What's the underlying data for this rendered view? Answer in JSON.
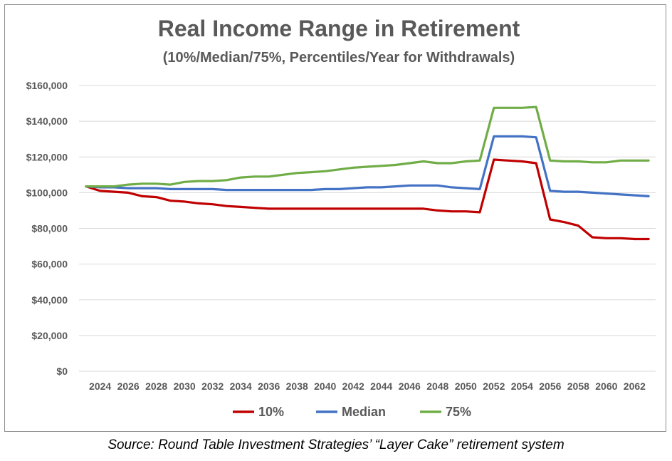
{
  "chart_data": {
    "type": "line",
    "title": "Real Income Range in Retirement",
    "subtitle": "(10%/Median/75%, Percentiles/Year for Withdrawals)",
    "xlabel": "",
    "ylabel": "",
    "x": [
      2023,
      2024,
      2025,
      2026,
      2027,
      2028,
      2029,
      2030,
      2031,
      2032,
      2033,
      2034,
      2035,
      2036,
      2037,
      2038,
      2039,
      2040,
      2041,
      2042,
      2043,
      2044,
      2045,
      2046,
      2047,
      2048,
      2049,
      2050,
      2051,
      2052,
      2053,
      2054,
      2055,
      2056,
      2057,
      2058,
      2059,
      2060,
      2061,
      2062,
      2063
    ],
    "xticks": [
      "2024",
      "2026",
      "2028",
      "2030",
      "2032",
      "2034",
      "2036",
      "2038",
      "2040",
      "2042",
      "2044",
      "2046",
      "2048",
      "2050",
      "2052",
      "2054",
      "2056",
      "2058",
      "2060",
      "2062"
    ],
    "xtick_values": [
      2024,
      2026,
      2028,
      2030,
      2032,
      2034,
      2036,
      2038,
      2040,
      2042,
      2044,
      2046,
      2048,
      2050,
      2052,
      2054,
      2056,
      2058,
      2060,
      2062
    ],
    "ylim": [
      0,
      160000
    ],
    "yticks": [
      0,
      20000,
      40000,
      60000,
      80000,
      100000,
      120000,
      140000,
      160000
    ],
    "ytick_labels": [
      "$0",
      "$20,000",
      "$40,000",
      "$60,000",
      "$80,000",
      "$100,000",
      "$120,000",
      "$140,000",
      "$160,000"
    ],
    "grid": true,
    "legend_position": "bottom",
    "series": [
      {
        "name": "10%",
        "color": "#c00000",
        "values": [
          103500,
          101000,
          100500,
          100000,
          98000,
          97500,
          95500,
          95000,
          94000,
          93500,
          92500,
          92000,
          91500,
          91000,
          91000,
          91000,
          91000,
          91000,
          91000,
          91000,
          91000,
          91000,
          91000,
          91000,
          91000,
          90000,
          89500,
          89500,
          89000,
          118500,
          118000,
          117500,
          116500,
          85000,
          83500,
          81500,
          75000,
          74500,
          74500,
          74000,
          74000
        ]
      },
      {
        "name": "Median",
        "color": "#4472c4",
        "values": [
          103500,
          103000,
          103000,
          102500,
          102500,
          102500,
          102000,
          102000,
          102000,
          102000,
          101500,
          101500,
          101500,
          101500,
          101500,
          101500,
          101500,
          102000,
          102000,
          102500,
          103000,
          103000,
          103500,
          104000,
          104000,
          104000,
          103000,
          102500,
          102000,
          131500,
          131500,
          131500,
          131000,
          101000,
          100500,
          100500,
          100000,
          99500,
          99000,
          98500,
          98000
        ]
      },
      {
        "name": "75%",
        "color": "#70ad47",
        "values": [
          103500,
          103500,
          103500,
          104500,
          105000,
          105000,
          104500,
          106000,
          106500,
          106500,
          107000,
          108500,
          109000,
          109000,
          110000,
          111000,
          111500,
          112000,
          113000,
          114000,
          114500,
          115000,
          115500,
          116500,
          117500,
          116500,
          116500,
          117500,
          118000,
          147500,
          147500,
          147500,
          148000,
          118000,
          117500,
          117500,
          117000,
          117000,
          118000,
          118000,
          118000
        ]
      }
    ]
  },
  "source_note": "Source: Round Table Investment Strategies’ “Layer Cake” retirement system"
}
